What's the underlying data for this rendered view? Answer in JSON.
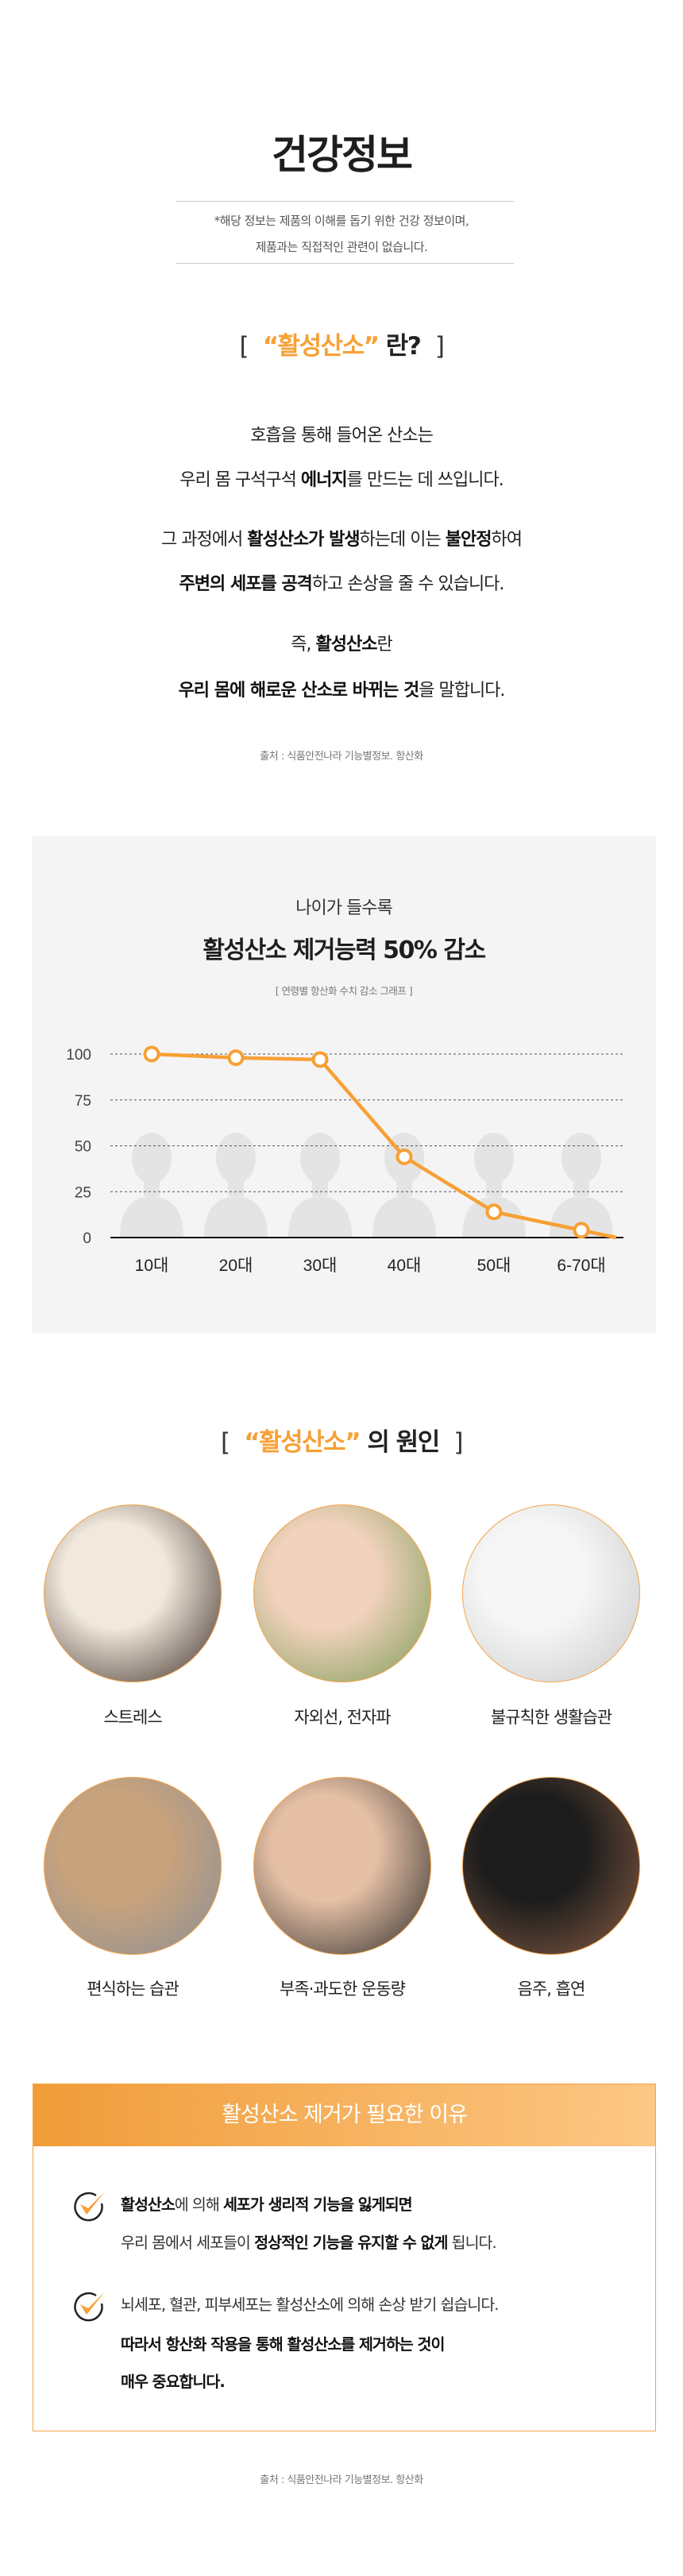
{
  "header": {
    "title": "건강정보",
    "disclaimer": [
      "*해당 정보는 제품의 이해를 돕기 위한 건강 정보이며,",
      "제품과는 직접적인 관련이 없습니다."
    ]
  },
  "definition": {
    "heading": {
      "open": "[",
      "highlight": "“활성산소”",
      "rest": " 란?",
      "close": "]"
    },
    "lines": [
      [
        {
          "t": "호흡을 통해 들어온 산소는",
          "s": ""
        }
      ],
      [
        {
          "t": "우리 몸 구석구석 ",
          "s": ""
        },
        {
          "t": "에너지",
          "s": "b"
        },
        {
          "t": "를 만드는 데 쓰입니다.",
          "s": ""
        }
      ],
      [
        {
          "t": "그 과정에서 ",
          "s": ""
        },
        {
          "t": "활성산소가 발생",
          "s": "b"
        },
        {
          "t": "하는데 이는 ",
          "s": ""
        },
        {
          "t": "불안정",
          "s": "b"
        },
        {
          "t": "하여",
          "s": ""
        }
      ],
      [
        {
          "t": "주변의 세포를 공격",
          "s": "b"
        },
        {
          "t": "하고 손상을 줄 수 있습니다.",
          "s": ""
        }
      ],
      [
        {
          "t": "즉, ",
          "s": ""
        },
        {
          "t": "활성산소",
          "s": "o"
        },
        {
          "t": "란",
          "s": ""
        }
      ],
      [
        {
          "t": "우리 몸에 해로운 산소로 바뀌는 것",
          "s": "o"
        },
        {
          "t": "을 말합니다.",
          "s": ""
        }
      ]
    ],
    "source": "출처 : 식품안전나라 기능별정보. 항산화"
  },
  "chart_section": {
    "subtitle": "나이가 들수록",
    "title": "활성산소 제거능력 50% 감소",
    "caption": "[ 연령별 항산화 수치 감소 그래프 ]"
  },
  "chart_data": {
    "type": "line",
    "categories": [
      "10대",
      "20대",
      "30대",
      "40대",
      "50대",
      "6-70대"
    ],
    "series": [
      {
        "values": [
          100,
          98,
          97,
          44,
          14,
          4
        ]
      }
    ],
    "yticks": [
      100,
      75,
      50,
      25,
      0
    ],
    "ylim": [
      0,
      100
    ],
    "grid": true,
    "line_color": "#f7a035",
    "background_icons": "person-silhouette"
  },
  "causes": {
    "heading": {
      "open": "[",
      "highlight": "“활성산소”",
      "rest": " 의 원인",
      "close": "]"
    },
    "items": [
      {
        "label": "스트레스",
        "image": "stressed-woman-photo",
        "colors": [
          "#f1e9dd",
          "#3a2a24"
        ]
      },
      {
        "label": "자외선, 전자파",
        "image": "woman-sunlight-photo",
        "colors": [
          "#f2d2bd",
          "#7a9b55"
        ]
      },
      {
        "label": "불규칙한 생활습관",
        "image": "alarm-clock-photo",
        "colors": [
          "#f6f6f6",
          "#c9c9c9"
        ]
      },
      {
        "label": "편식하는 습관",
        "image": "woman-meal-photo",
        "colors": [
          "#c9a37c",
          "#8a8f96"
        ]
      },
      {
        "label": "부족·과도한 운동량",
        "image": "knee-pain-photo",
        "colors": [
          "#e6c0a5",
          "#2b2b2b"
        ]
      },
      {
        "label": "음주, 흡연",
        "image": "smoking-man-photo",
        "colors": [
          "#1c1c1c",
          "#8a5d44"
        ]
      }
    ]
  },
  "reasons": {
    "title": "활성산소 제거가 필요한 이유",
    "items": [
      [
        [
          {
            "t": "활성산소",
            "s": "b"
          },
          {
            "t": "에 의해 ",
            "s": ""
          },
          {
            "t": "세포가 생리적 기능을 잃게되면",
            "s": "b"
          }
        ],
        [
          {
            "t": "우리 몸에서 세포들이 ",
            "s": ""
          },
          {
            "t": "정상적인 기능을 유지할 수 없게",
            "s": "b"
          },
          {
            "t": " 됩니다.",
            "s": ""
          }
        ]
      ],
      [
        [
          {
            "t": "뇌세포, 혈관, 피부세포는 활성산소에 의해 손상 받기 쉽습니다.",
            "s": ""
          }
        ],
        [
          {
            "t": "따라서 항산화 작용을 통해 활성산소를 제거하는 것이",
            "s": "b"
          }
        ],
        [
          {
            "t": "매우 중요합니다.",
            "s": "b"
          }
        ]
      ]
    ],
    "source": "출처 : 식품안전나라 기능별정보. 항산화"
  },
  "colors": {
    "accent": "#f7a035",
    "panel": "#f4f4f4"
  }
}
